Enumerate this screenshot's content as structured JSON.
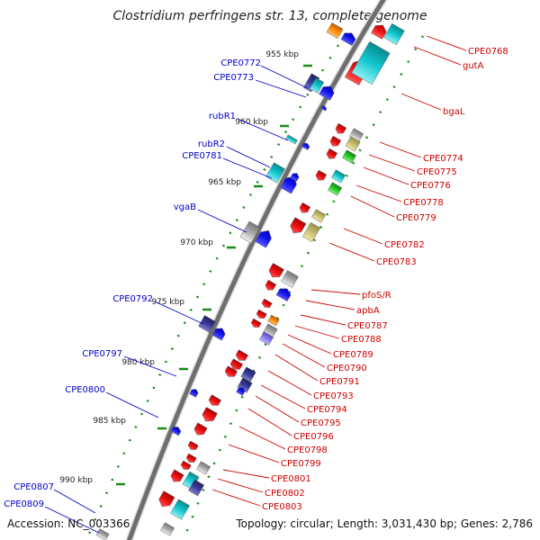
{
  "title": "Clostridium perfringens str. 13, complete genome",
  "footer": {
    "accession": "Accession: NC_003366",
    "summary": "Topology: circular; Length: 3,031,430 bp; Genes: 2,786"
  },
  "colors": {
    "left_label": "#0000cc",
    "right_label": "#cc0000",
    "backbone": "#7a7a7a",
    "tick": "#1a8a1a",
    "red_gene": "#ee1111",
    "blue_gene": "#1111ee",
    "cyan_gene": "#11c8d0",
    "gray_gene": "#aaaaaa",
    "khaki_gene": "#c8c070",
    "green_gene": "#22cc22",
    "orange_gene": "#ff8c00",
    "navy_gene": "#3a3a9a",
    "lavender_gene": "#8a7aee"
  },
  "kbp_ticks": [
    {
      "label": "955 kbp",
      "pos": 955
    },
    {
      "label": "960 kbp",
      "pos": 960
    },
    {
      "label": "965 kbp",
      "pos": 965
    },
    {
      "label": "970 kbp",
      "pos": 970
    },
    {
      "label": "975 kbp",
      "pos": 975
    },
    {
      "label": "980 kbp",
      "pos": 980
    },
    {
      "label": "985 kbp",
      "pos": 985
    },
    {
      "label": "990 kbp",
      "pos": 990
    }
  ],
  "left_labels": [
    "CPE0772",
    "CPE0773",
    "rubR1",
    "rubR2",
    "CPE0781",
    "vgaB",
    "CPE0792",
    "CPE0797",
    "CPE0800",
    "CPE0807",
    "CPE0809"
  ],
  "right_labels": [
    "CPE0768",
    "gutA",
    "bgaL",
    "CPE0774",
    "CPE0775",
    "CPE0776",
    "CPE0778",
    "CPE0779",
    "CPE0782",
    "CPE0783",
    "pfoS/R",
    "apbA",
    "CPE0787",
    "CPE0788",
    "CPE0789",
    "CPE0790",
    "CPE0791",
    "CPE0793",
    "CPE0794",
    "CPE0795",
    "CPE0796",
    "CPE0798",
    "CPE0799",
    "CPE0801",
    "CPE0802",
    "CPE0803"
  ]
}
